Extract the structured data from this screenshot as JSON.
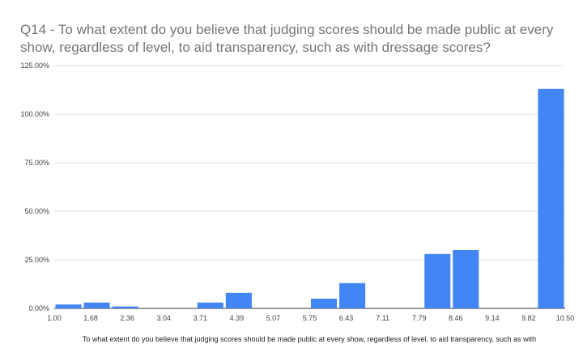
{
  "chart_data": {
    "type": "bar",
    "title": "Q14 - To what extent do you believe that judging scores should be made public at every show, regardless of level, to aid transparency, such as with dressage scores?",
    "xlabel": "To what extent do you believe that judging scores should be made public at every show, regardless of level, to aid transparency, such as with",
    "ylabel": "",
    "x_ticks": [
      "1.00",
      "1.68",
      "2.36",
      "3.04",
      "3.71",
      "4.39",
      "5.07",
      "5.75",
      "6.43",
      "7.11",
      "7.79",
      "8.46",
      "9.14",
      "9.82",
      "10.50"
    ],
    "values": [
      2,
      3,
      1,
      0,
      0,
      3,
      8,
      0,
      0,
      5,
      13,
      0,
      0,
      28,
      30,
      0,
      0,
      113
    ],
    "y_ticks": [
      "0.00%",
      "25.00%",
      "50.00%",
      "75.00%",
      "100.00%",
      "125.00%"
    ],
    "ylim": [
      0,
      125
    ],
    "grid": true,
    "legend": "none",
    "bar_color": "#4285f4",
    "grid_color": "#e0e0e0"
  }
}
